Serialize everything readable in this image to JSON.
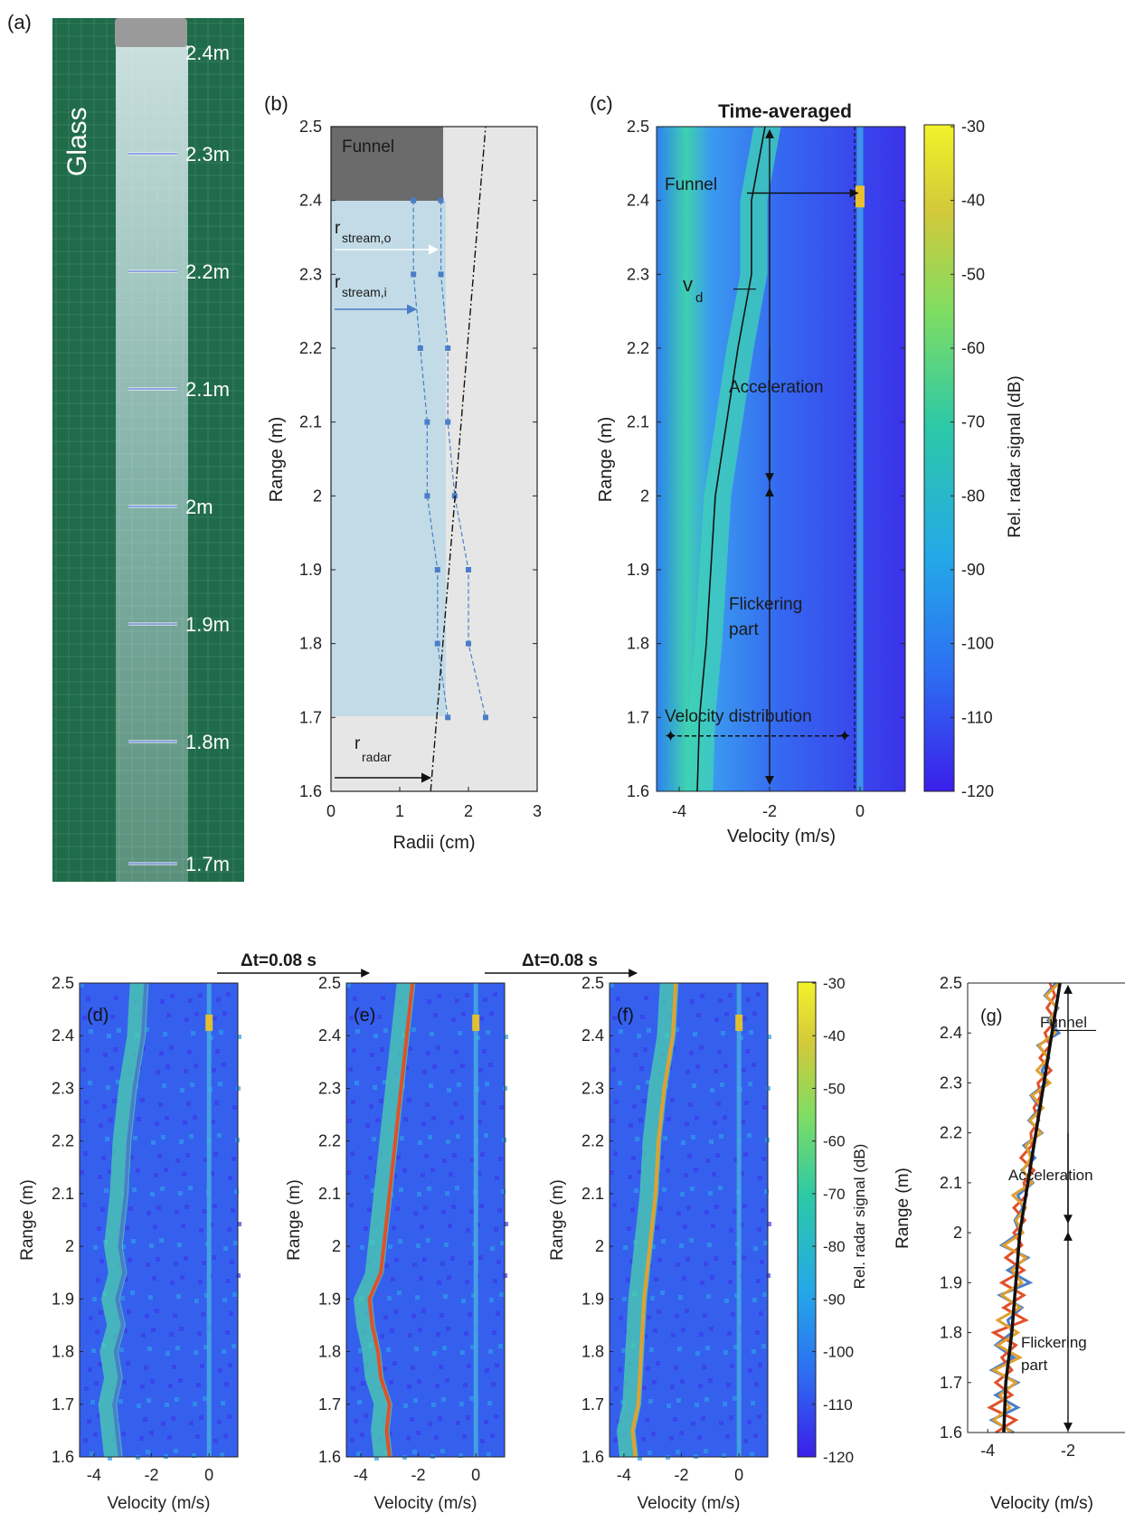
{
  "panel_labels": {
    "a": "(a)",
    "b": "(b)",
    "c": "(c)",
    "d": "(d)",
    "e": "(e)",
    "f": "(f)",
    "g": "(g)"
  },
  "panel_a": {
    "glass_label": "Glass",
    "marks": [
      "2.4m",
      "2.3m",
      "2.2m",
      "2.1m",
      "2m",
      "1.9m",
      "1.8m",
      "1.7m"
    ],
    "background_color": "#1f6b4a",
    "arrow_color": "#4a6fd6"
  },
  "panel_b": {
    "title": "",
    "xlabel": "Radii (cm)",
    "ylabel": "Range (m)",
    "funnel_label": "Funnel",
    "label_outer": "r",
    "label_outer_sub": "stream,o",
    "label_inner": "r",
    "label_inner_sub": "stream,i",
    "label_radar": "r",
    "label_radar_sub": "radar",
    "colors": {
      "funnel": "#6b6b6b",
      "stream": "#c2dbe6",
      "radar_cone": "#e6e6e6",
      "markers": "#4a7ec8"
    }
  },
  "panel_c": {
    "title": "Time-averaged",
    "xlabel": "Velocity (m/s)",
    "ylabel": "Range (m)",
    "colorbar_label": "Rel. radar signal (dB)",
    "annotations": {
      "funnel": "Funnel",
      "vd": "v",
      "vd_sub": "d",
      "acceleration": "Acceleration",
      "flickering": "Flickering",
      "part": "part",
      "velocity_distribution": "Velocity distribution"
    }
  },
  "colorbar": {
    "ticks": [
      "-30",
      "-40",
      "-50",
      "-60",
      "-70",
      "-80",
      "-90",
      "-100",
      "-110",
      "-120"
    ],
    "colors": [
      "#3b1fea",
      "#2d6ff2",
      "#24a8e8",
      "#2dc9a6",
      "#7fdd62",
      "#d3c93a",
      "#f2f22a"
    ]
  },
  "dt_labels": [
    "Δt=0.08 s",
    "Δt=0.08 s"
  ],
  "panels_def": {
    "xlabel": "Velocity (m/s)",
    "ylabel": "Range (m)",
    "colorbar_label": "Rel. radar signal (dB)",
    "trace_colors": {
      "d": "#4a7ec8",
      "e": "#e0502a",
      "f": "#e0a030"
    }
  },
  "panel_g": {
    "xlabel": "Velocity (m/s)",
    "ylabel": "Range (m)",
    "annotations": {
      "funnel": "Funnel",
      "acceleration": "Acceleration",
      "flickering": "Flickering",
      "part": "part"
    }
  },
  "chart_data": [
    {
      "id": "b",
      "type": "line",
      "x": [
        0,
        3
      ],
      "ylim": [
        1.6,
        2.5
      ],
      "x_ticks": [
        "0",
        "1",
        "2",
        "3"
      ],
      "y_ticks": [
        "1.6",
        "1.7",
        "1.8",
        "1.9",
        "2",
        "2.1",
        "2.2",
        "2.3",
        "2.4",
        "2.5"
      ],
      "series": [
        {
          "role": "inner",
          "points": [
            [
              1.2,
              2.4
            ],
            [
              1.2,
              2.3
            ],
            [
              1.3,
              2.2
            ],
            [
              1.4,
              2.1
            ],
            [
              1.4,
              2.0
            ],
            [
              1.55,
              1.9
            ],
            [
              1.55,
              1.8
            ],
            [
              1.7,
              1.7
            ]
          ]
        },
        {
          "role": "outer",
          "points": [
            [
              1.6,
              2.4
            ],
            [
              1.6,
              2.3
            ],
            [
              1.7,
              2.2
            ],
            [
              1.7,
              2.1
            ],
            [
              1.8,
              2.0
            ],
            [
              2.0,
              1.9
            ],
            [
              2.0,
              1.8
            ],
            [
              2.25,
              1.7
            ]
          ]
        },
        {
          "role": "radar",
          "points": [
            [
              1.45,
              1.6
            ],
            [
              2.25,
              2.5
            ]
          ]
        }
      ]
    },
    {
      "id": "c",
      "type": "heatmap",
      "xlim": [
        -4.5,
        1
      ],
      "ylim": [
        1.6,
        2.5
      ],
      "x_ticks": [
        "-4",
        "-2",
        "0"
      ],
      "y_ticks": [
        "1.6",
        "1.7",
        "1.8",
        "1.9",
        "2",
        "2.1",
        "2.2",
        "2.3",
        "2.4",
        "2.5"
      ],
      "vd": [
        [
          -3.6,
          1.6
        ],
        [
          -3.55,
          1.7
        ],
        [
          -3.4,
          1.8
        ],
        [
          -3.3,
          1.9
        ],
        [
          -3.2,
          2.0
        ],
        [
          -2.95,
          2.1
        ],
        [
          -2.7,
          2.2
        ],
        [
          -2.4,
          2.3
        ],
        [
          -2.4,
          2.4
        ],
        [
          -2.1,
          2.5
        ]
      ]
    },
    {
      "id": "d",
      "type": "heatmap",
      "xlim": [
        -4.5,
        1
      ],
      "ylim": [
        1.6,
        2.5
      ],
      "x_ticks": [
        "-4",
        "-2",
        "0"
      ],
      "y_ticks": [
        "1.6",
        "1.7",
        "1.8",
        "1.9",
        "2",
        "2.1",
        "2.2",
        "2.3",
        "2.4",
        "2.5"
      ],
      "trace": [
        [
          -3.1,
          1.6
        ],
        [
          -3.2,
          1.65
        ],
        [
          -3.3,
          1.7
        ],
        [
          -3.1,
          1.75
        ],
        [
          -3.25,
          1.8
        ],
        [
          -3.0,
          1.85
        ],
        [
          -3.2,
          1.9
        ],
        [
          -2.95,
          1.95
        ],
        [
          -3.1,
          2.0
        ],
        [
          -2.9,
          2.1
        ],
        [
          -2.8,
          2.2
        ],
        [
          -2.6,
          2.3
        ],
        [
          -2.3,
          2.4
        ],
        [
          -2.2,
          2.5
        ]
      ]
    },
    {
      "id": "e",
      "type": "heatmap",
      "xlim": [
        -4.5,
        1
      ],
      "ylim": [
        1.6,
        2.5
      ],
      "x_ticks": [
        "-4",
        "-2",
        "0"
      ],
      "y_ticks": [
        "1.6",
        "1.7",
        "1.8",
        "1.9",
        "2",
        "2.1",
        "2.2",
        "2.3",
        "2.4",
        "2.5"
      ],
      "trace": [
        [
          -3.0,
          1.6
        ],
        [
          -3.1,
          1.65
        ],
        [
          -3.0,
          1.7
        ],
        [
          -3.3,
          1.75
        ],
        [
          -3.4,
          1.8
        ],
        [
          -3.6,
          1.85
        ],
        [
          -3.7,
          1.9
        ],
        [
          -3.3,
          1.95
        ],
        [
          -3.2,
          2.0
        ],
        [
          -3.0,
          2.1
        ],
        [
          -2.8,
          2.2
        ],
        [
          -2.6,
          2.3
        ],
        [
          -2.4,
          2.4
        ],
        [
          -2.2,
          2.5
        ]
      ]
    },
    {
      "id": "f",
      "type": "heatmap",
      "xlim": [
        -4.5,
        1
      ],
      "ylim": [
        1.6,
        2.5
      ],
      "x_ticks": [
        "-4",
        "-2",
        "0"
      ],
      "y_ticks": [
        "1.6",
        "1.7",
        "1.8",
        "1.9",
        "2",
        "2.1",
        "2.2",
        "2.3",
        "2.4",
        "2.5"
      ],
      "trace": [
        [
          -3.6,
          1.6
        ],
        [
          -3.7,
          1.65
        ],
        [
          -3.5,
          1.7
        ],
        [
          -3.4,
          1.8
        ],
        [
          -3.3,
          1.9
        ],
        [
          -3.1,
          2.0
        ],
        [
          -2.9,
          2.1
        ],
        [
          -2.8,
          2.2
        ],
        [
          -2.6,
          2.3
        ],
        [
          -2.3,
          2.4
        ],
        [
          -2.2,
          2.5
        ]
      ]
    },
    {
      "id": "g",
      "type": "line",
      "xlim": [
        -4.5,
        0.5
      ],
      "ylim": [
        1.6,
        2.5
      ],
      "x_ticks": [
        "-4",
        "-2",
        "0"
      ],
      "y_ticks": [
        "1.6",
        "1.7",
        "1.8",
        "1.9",
        "2",
        "2.1",
        "2.2",
        "2.3",
        "2.4",
        "2.5"
      ],
      "mean": [
        [
          -3.6,
          1.6
        ],
        [
          -3.55,
          1.7
        ],
        [
          -3.4,
          1.8
        ],
        [
          -3.3,
          1.9
        ],
        [
          -3.2,
          2.0
        ],
        [
          -3.0,
          2.1
        ],
        [
          -2.8,
          2.2
        ],
        [
          -2.6,
          2.3
        ],
        [
          -2.4,
          2.4
        ],
        [
          -2.2,
          2.5
        ]
      ]
    }
  ]
}
